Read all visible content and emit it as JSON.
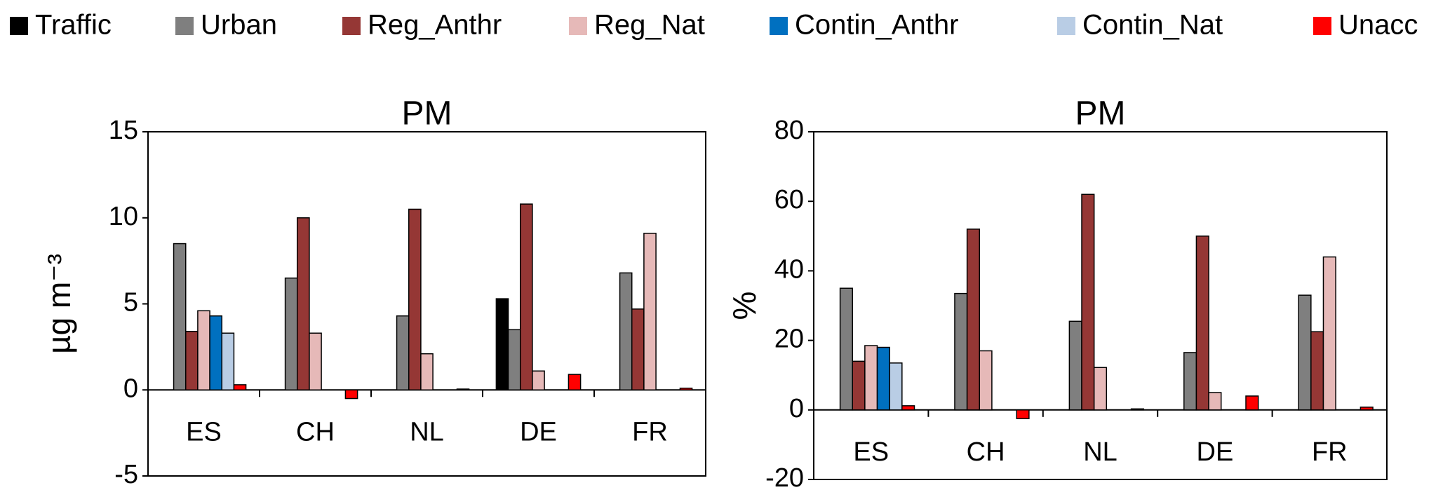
{
  "chart_data": [
    {
      "type": "bar",
      "title": "PM",
      "ylabel": "µg m⁻³",
      "legend": "top",
      "grid": false,
      "categories": [
        "ES",
        "CH",
        "NL",
        "DE",
        "FR"
      ],
      "ylim": [
        -5,
        15
      ],
      "yticks": [
        -5,
        0,
        5,
        10,
        15
      ],
      "series": [
        {
          "name": "Traffic",
          "color": "#000000",
          "values": [
            null,
            null,
            null,
            5.3,
            null
          ]
        },
        {
          "name": "Urban",
          "color": "#7f7f7f",
          "values": [
            8.5,
            6.5,
            4.3,
            3.5,
            6.8
          ]
        },
        {
          "name": "Reg_Anthr",
          "color": "#953735",
          "values": [
            3.4,
            10.0,
            10.5,
            10.8,
            4.7
          ]
        },
        {
          "name": "Reg_Nat",
          "color": "#e6b9b8",
          "values": [
            4.6,
            3.3,
            2.1,
            1.1,
            9.1
          ]
        },
        {
          "name": "Contin_Anthr",
          "color": "#0070c0",
          "values": [
            4.3,
            null,
            null,
            null,
            null
          ]
        },
        {
          "name": "Contin_Nat",
          "color": "#b9cde5",
          "values": [
            3.3,
            null,
            null,
            null,
            null
          ]
        },
        {
          "name": "Unacc",
          "color": "#ff0000",
          "values": [
            0.3,
            -0.5,
            0.05,
            0.9,
            0.1
          ]
        }
      ]
    },
    {
      "type": "bar",
      "title": "PM",
      "ylabel": "%",
      "grid": false,
      "categories": [
        "ES",
        "CH",
        "NL",
        "DE",
        "FR"
      ],
      "ylim": [
        -20,
        80
      ],
      "yticks": [
        -20,
        0,
        20,
        40,
        60,
        80
      ],
      "series": [
        {
          "color": "#000000",
          "values": [
            null,
            null,
            null,
            null,
            null
          ]
        },
        {
          "color": "#7f7f7f",
          "values": [
            35,
            33.5,
            25.5,
            16.5,
            33
          ]
        },
        {
          "color": "#953735",
          "values": [
            14,
            52,
            62,
            50,
            22.5
          ]
        },
        {
          "color": "#e6b9b8",
          "values": [
            18.5,
            17,
            12.2,
            5,
            44
          ]
        },
        {
          "color": "#0070c0",
          "values": [
            18,
            null,
            null,
            null,
            null
          ]
        },
        {
          "color": "#b9cde5",
          "values": [
            13.5,
            null,
            null,
            null,
            null
          ]
        },
        {
          "color": "#ff0000",
          "values": [
            1.2,
            -2.5,
            0.3,
            4,
            0.8
          ]
        }
      ]
    }
  ]
}
